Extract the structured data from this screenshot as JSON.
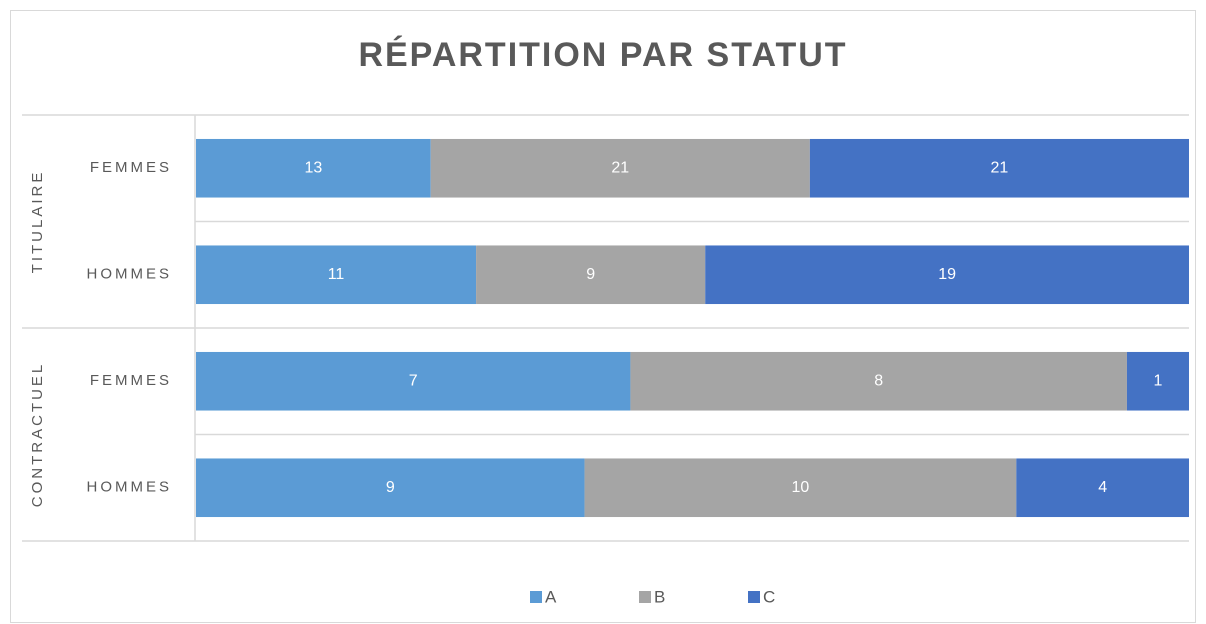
{
  "chart_data": {
    "type": "bar",
    "orientation": "horizontal",
    "stacking": "percent",
    "title": "RÉPARTITION PAR STATUT",
    "groups": [
      {
        "name": "TITULAIRE",
        "categories": [
          "FEMMES",
          "HOMMES"
        ]
      },
      {
        "name": "CONTRACTUEL",
        "categories": [
          "FEMMES",
          "HOMMES"
        ]
      }
    ],
    "series": [
      {
        "name": "A",
        "color": "#5b9bd5",
        "values": [
          13,
          11,
          7,
          9
        ]
      },
      {
        "name": "B",
        "color": "#a5a5a5",
        "values": [
          21,
          9,
          8,
          10
        ]
      },
      {
        "name": "C",
        "color": "#4472c4",
        "values": [
          21,
          19,
          1,
          4
        ]
      }
    ],
    "legend": "bottom"
  }
}
